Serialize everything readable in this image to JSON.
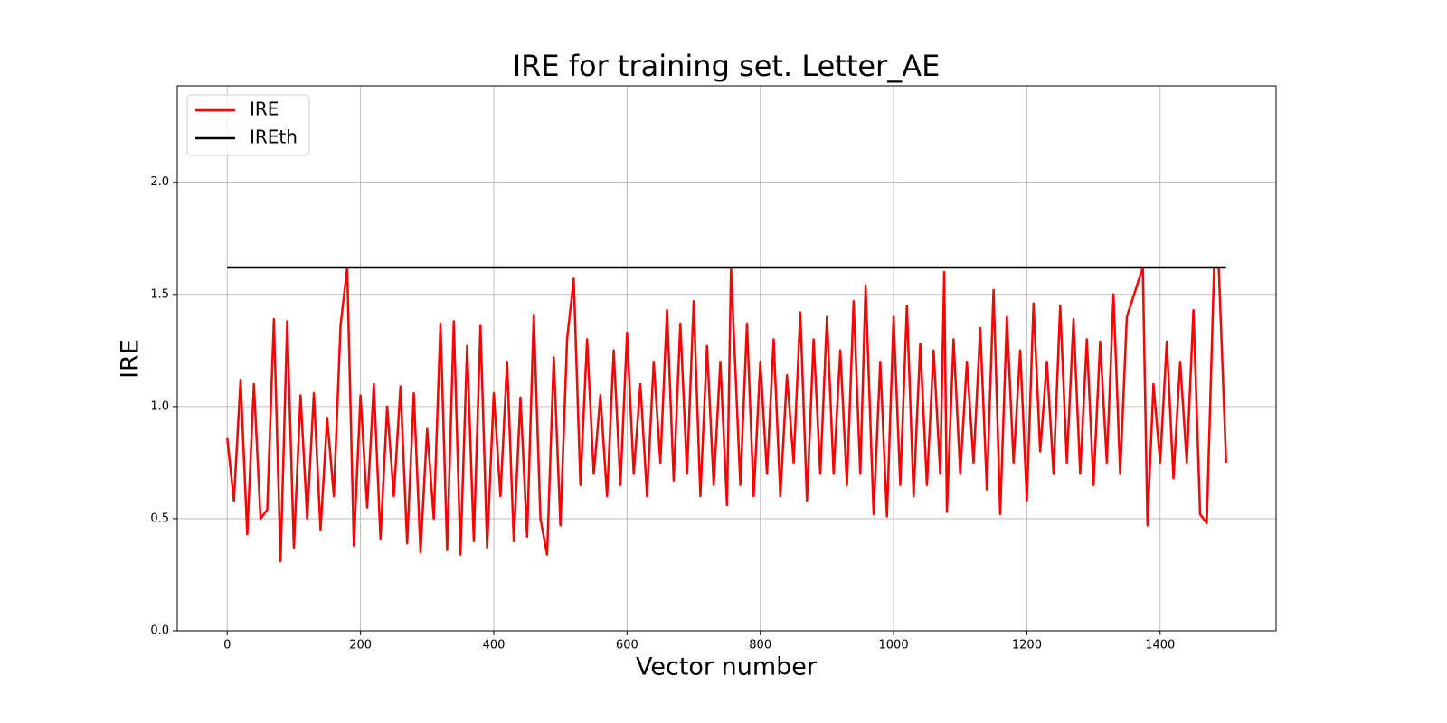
{
  "chart_data": {
    "type": "line",
    "title": "IRE for training set. Letter_AE",
    "x_label": "Vector number",
    "y_label": "IRE",
    "xlim": [
      -75,
      1574
    ],
    "ylim": [
      0,
      2.43
    ],
    "xticks": [
      0,
      200,
      400,
      600,
      800,
      1000,
      1200,
      1400
    ],
    "yticks": [
      {
        "value": 0,
        "label": "0.0"
      },
      0.5,
      {
        "value": 1,
        "label": "1.0"
      },
      1.5,
      {
        "value": 2,
        "label": "2.0"
      }
    ],
    "grid": true,
    "legend": "upper left",
    "series": [
      {
        "name": "IRE",
        "color": "#ff0000",
        "x": [
          0,
          10,
          20,
          30,
          40,
          50,
          60,
          70,
          80,
          90,
          100,
          110,
          120,
          130,
          140,
          150,
          160,
          170,
          180,
          190,
          200,
          210,
          220,
          230,
          240,
          250,
          260,
          270,
          280,
          290,
          300,
          310,
          320,
          330,
          340,
          350,
          360,
          370,
          380,
          390,
          400,
          410,
          420,
          430,
          440,
          450,
          460,
          470,
          480,
          490,
          500,
          510,
          520,
          530,
          540,
          550,
          560,
          570,
          580,
          590,
          600,
          610,
          620,
          630,
          640,
          650,
          660,
          670,
          680,
          690,
          700,
          710,
          720,
          730,
          740,
          750,
          756,
          770,
          780,
          790,
          800,
          810,
          820,
          830,
          840,
          850,
          860,
          870,
          880,
          890,
          900,
          910,
          920,
          930,
          940,
          950,
          958,
          970,
          980,
          990,
          1000,
          1010,
          1020,
          1030,
          1040,
          1050,
          1060,
          1070,
          1076,
          1080,
          1090,
          1100,
          1110,
          1120,
          1130,
          1140,
          1150,
          1160,
          1170,
          1180,
          1190,
          1200,
          1210,
          1220,
          1230,
          1240,
          1250,
          1260,
          1270,
          1280,
          1290,
          1300,
          1310,
          1320,
          1330,
          1340,
          1350,
          1374,
          1381,
          1390,
          1400,
          1410,
          1420,
          1430,
          1440,
          1450,
          1460,
          1470,
          1481,
          1488,
          1499
        ],
        "values": [
          0.86,
          0.58,
          1.12,
          0.43,
          1.1,
          0.5,
          0.54,
          1.39,
          0.31,
          1.38,
          0.37,
          1.05,
          0.5,
          1.06,
          0.45,
          0.95,
          0.6,
          1.36,
          1.62,
          0.38,
          1.05,
          0.55,
          1.1,
          0.41,
          1.0,
          0.6,
          1.09,
          0.39,
          1.06,
          0.35,
          0.9,
          0.5,
          1.37,
          0.36,
          1.38,
          0.34,
          1.27,
          0.4,
          1.36,
          0.37,
          1.06,
          0.6,
          1.2,
          0.4,
          1.04,
          0.42,
          1.41,
          0.5,
          0.34,
          1.22,
          0.47,
          1.3,
          1.57,
          0.65,
          1.3,
          0.7,
          1.05,
          0.6,
          1.25,
          0.65,
          1.33,
          0.7,
          1.1,
          0.6,
          1.2,
          0.75,
          1.43,
          0.67,
          1.37,
          0.7,
          1.47,
          0.6,
          1.27,
          0.65,
          1.2,
          0.56,
          1.62,
          0.65,
          1.37,
          0.6,
          1.2,
          0.7,
          1.3,
          0.6,
          1.14,
          0.75,
          1.42,
          0.58,
          1.3,
          0.7,
          1.4,
          0.7,
          1.25,
          0.65,
          1.47,
          0.7,
          1.54,
          0.52,
          1.2,
          0.51,
          1.4,
          0.65,
          1.45,
          0.6,
          1.28,
          0.65,
          1.25,
          0.7,
          1.6,
          0.53,
          1.3,
          0.7,
          1.2,
          0.75,
          1.35,
          0.63,
          1.52,
          0.52,
          1.4,
          0.75,
          1.25,
          0.58,
          1.46,
          0.8,
          1.2,
          0.7,
          1.45,
          0.75,
          1.39,
          0.7,
          1.3,
          0.65,
          1.29,
          0.75,
          1.5,
          0.7,
          1.4,
          1.62,
          0.47,
          1.1,
          0.75,
          1.29,
          0.68,
          1.2,
          0.75,
          1.43,
          0.52,
          0.48,
          1.62,
          1.62,
          0.75
        ]
      },
      {
        "name": "IREth",
        "color": "#000000",
        "x": [
          0,
          1499
        ],
        "values": [
          1.62,
          1.62
        ]
      }
    ]
  }
}
